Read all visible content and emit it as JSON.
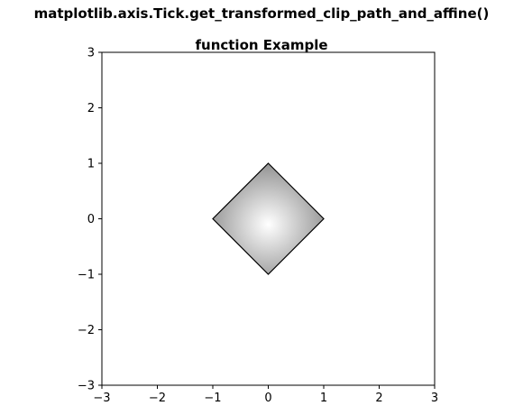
{
  "chart_data": {
    "type": "area",
    "title_lines": [
      "matplotlib.axis.Tick.get_transformed_clip_path_and_affine()",
      "function Example"
    ],
    "xlabel": "",
    "ylabel": "",
    "xlim": [
      -3,
      3
    ],
    "ylim": [
      -3,
      3
    ],
    "xticks": [
      -3,
      -2,
      -1,
      0,
      1,
      2,
      3
    ],
    "yticks": [
      -3,
      -2,
      -1,
      0,
      1,
      2,
      3
    ],
    "xtick_labels": [
      "−3",
      "−2",
      "−1",
      "0",
      "1",
      "2",
      "3"
    ],
    "ytick_labels": [
      "−3",
      "−2",
      "−1",
      "0",
      "1",
      "2",
      "3"
    ],
    "grid": false,
    "shape": {
      "kind": "polygon",
      "points": [
        [
          0,
          1
        ],
        [
          1,
          0
        ],
        [
          0,
          -1
        ],
        [
          -1,
          0
        ]
      ],
      "fill": "radial gradient image clipped to polygon",
      "gradient_center": [
        0,
        -0.1
      ],
      "gradient_colors": [
        "#ffffff",
        "#7a7a7a"
      ],
      "edge_color": "#000000"
    }
  }
}
